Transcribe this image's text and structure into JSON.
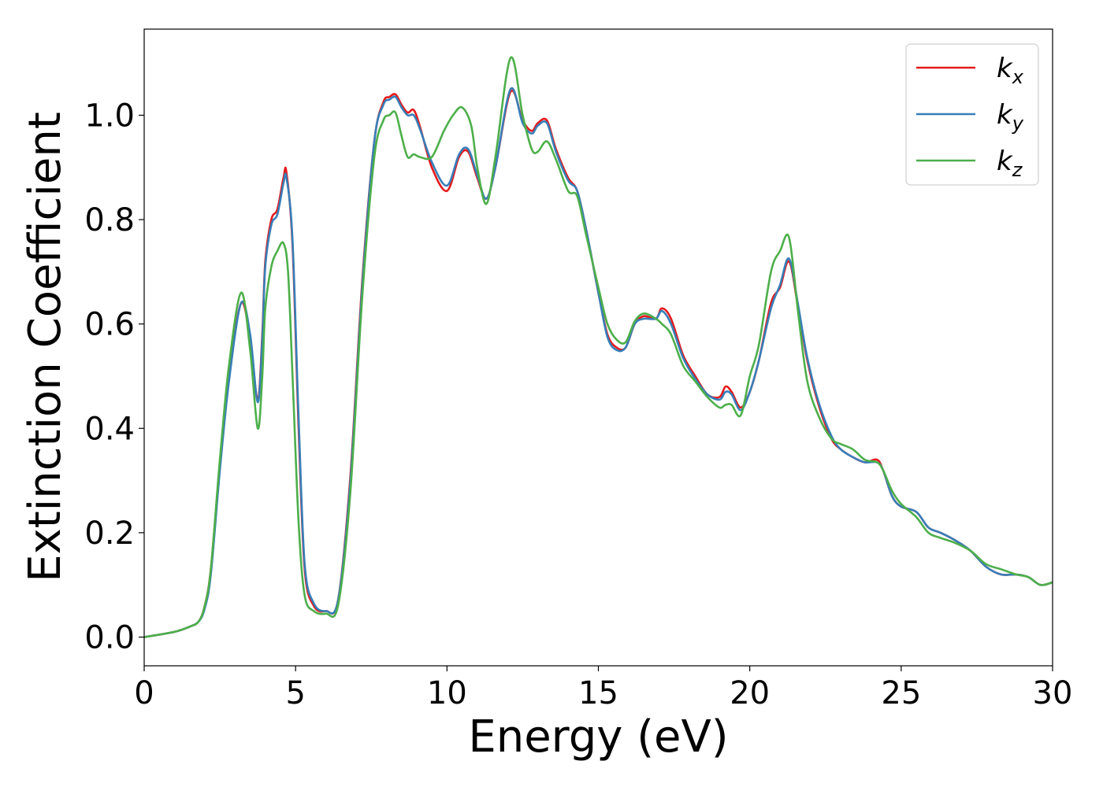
{
  "chart_data": {
    "type": "line",
    "title": "",
    "xlabel": "Energy (eV)",
    "ylabel": "Extinction Coefficient",
    "xlim": [
      0,
      30
    ],
    "ylim": [
      -0.055,
      1.165
    ],
    "xticks": [
      0,
      5,
      10,
      15,
      20,
      25,
      30
    ],
    "xtick_labels": [
      "0",
      "5",
      "10",
      "15",
      "20",
      "25",
      "30"
    ],
    "yticks": [
      0.0,
      0.2,
      0.4,
      0.6,
      0.8,
      1.0
    ],
    "ytick_labels": [
      "0.0",
      "0.2",
      "0.4",
      "0.6",
      "0.8",
      "1.0"
    ],
    "grid": false,
    "legend_position": "top-right",
    "series": [
      {
        "name": "k_x",
        "label_main": "k",
        "label_sub": "x",
        "color": "#e41a1c",
        "x": [
          0,
          1,
          1.5,
          1.8,
          2.0,
          2.2,
          2.5,
          2.8,
          3.2,
          3.5,
          3.75,
          3.9,
          4.0,
          4.2,
          4.4,
          4.6,
          4.7,
          4.9,
          5.1,
          5.3,
          5.6,
          6.0,
          6.4,
          6.8,
          7.2,
          7.6,
          7.9,
          8.1,
          8.3,
          8.5,
          8.7,
          8.9,
          9.1,
          9.5,
          10.0,
          10.4,
          10.7,
          11.0,
          11.3,
          11.6,
          12.1,
          12.5,
          12.8,
          13.0,
          13.3,
          13.6,
          14.0,
          14.3,
          14.6,
          15.0,
          15.3,
          15.6,
          15.9,
          16.2,
          16.5,
          16.9,
          17.1,
          17.4,
          17.8,
          18.2,
          18.6,
          19.0,
          19.2,
          19.4,
          19.7,
          20.0,
          20.3,
          20.7,
          21.0,
          21.3,
          21.6,
          21.9,
          22.3,
          22.7,
          23.0,
          23.4,
          23.8,
          24.2,
          24.4,
          24.7,
          25.0,
          25.5,
          25.9,
          26.3,
          26.8,
          27.3,
          27.8,
          28.3,
          28.8,
          29.2,
          29.6,
          30
        ],
        "y": [
          0.0,
          0.01,
          0.02,
          0.03,
          0.06,
          0.13,
          0.33,
          0.5,
          0.64,
          0.57,
          0.455,
          0.58,
          0.72,
          0.8,
          0.82,
          0.88,
          0.89,
          0.75,
          0.4,
          0.13,
          0.06,
          0.05,
          0.07,
          0.3,
          0.68,
          0.95,
          1.025,
          1.035,
          1.04,
          1.02,
          1.005,
          1.01,
          0.98,
          0.9,
          0.855,
          0.92,
          0.93,
          0.88,
          0.84,
          0.9,
          1.045,
          0.99,
          0.97,
          0.985,
          0.99,
          0.935,
          0.88,
          0.855,
          0.78,
          0.66,
          0.58,
          0.555,
          0.555,
          0.6,
          0.615,
          0.61,
          0.63,
          0.61,
          0.54,
          0.5,
          0.465,
          0.46,
          0.48,
          0.47,
          0.44,
          0.47,
          0.53,
          0.64,
          0.67,
          0.72,
          0.63,
          0.53,
          0.44,
          0.38,
          0.36,
          0.345,
          0.335,
          0.34,
          0.32,
          0.27,
          0.25,
          0.24,
          0.21,
          0.2,
          0.185,
          0.165,
          0.135,
          0.12,
          0.12,
          0.115,
          0.1,
          0.105
        ]
      },
      {
        "name": "k_y",
        "label_main": "k",
        "label_sub": "y",
        "color": "#377eb8",
        "x": [
          0,
          1,
          1.5,
          1.8,
          2.0,
          2.2,
          2.5,
          2.8,
          3.2,
          3.5,
          3.75,
          3.9,
          4.0,
          4.2,
          4.4,
          4.6,
          4.7,
          4.9,
          5.1,
          5.3,
          5.6,
          6.0,
          6.4,
          6.8,
          7.2,
          7.6,
          7.9,
          8.1,
          8.3,
          8.5,
          8.7,
          8.9,
          9.1,
          9.5,
          10.0,
          10.4,
          10.7,
          11.0,
          11.3,
          11.6,
          12.1,
          12.5,
          12.8,
          13.0,
          13.3,
          13.6,
          14.0,
          14.3,
          14.6,
          15.0,
          15.3,
          15.6,
          15.9,
          16.2,
          16.5,
          16.9,
          17.1,
          17.4,
          17.8,
          18.2,
          18.6,
          19.0,
          19.2,
          19.4,
          19.7,
          20.0,
          20.3,
          20.7,
          21.0,
          21.3,
          21.6,
          21.9,
          22.3,
          22.7,
          23.0,
          23.4,
          23.8,
          24.2,
          24.4,
          24.7,
          25.0,
          25.5,
          25.9,
          26.3,
          26.8,
          27.3,
          27.8,
          28.3,
          28.8,
          29.2,
          29.6,
          30
        ],
        "y": [
          0.0,
          0.01,
          0.02,
          0.03,
          0.055,
          0.12,
          0.32,
          0.49,
          0.64,
          0.58,
          0.45,
          0.57,
          0.71,
          0.79,
          0.81,
          0.87,
          0.88,
          0.76,
          0.42,
          0.14,
          0.065,
          0.05,
          0.07,
          0.29,
          0.67,
          0.95,
          1.02,
          1.03,
          1.035,
          1.015,
          1.0,
          1.0,
          0.975,
          0.91,
          0.865,
          0.925,
          0.935,
          0.885,
          0.84,
          0.9,
          1.05,
          0.985,
          0.965,
          0.98,
          0.985,
          0.93,
          0.875,
          0.855,
          0.78,
          0.66,
          0.575,
          0.55,
          0.555,
          0.6,
          0.61,
          0.61,
          0.625,
          0.6,
          0.535,
          0.495,
          0.465,
          0.455,
          0.47,
          0.465,
          0.435,
          0.47,
          0.53,
          0.63,
          0.675,
          0.725,
          0.635,
          0.535,
          0.445,
          0.385,
          0.36,
          0.345,
          0.335,
          0.335,
          0.32,
          0.27,
          0.25,
          0.24,
          0.21,
          0.2,
          0.185,
          0.165,
          0.135,
          0.12,
          0.12,
          0.115,
          0.1,
          0.105
        ]
      },
      {
        "name": "k_z",
        "label_main": "k",
        "label_sub": "z",
        "color": "#4daf4a",
        "x": [
          0,
          1,
          1.5,
          1.8,
          2.0,
          2.2,
          2.5,
          2.8,
          3.2,
          3.5,
          3.75,
          3.9,
          4.0,
          4.2,
          4.4,
          4.6,
          4.75,
          4.9,
          5.1,
          5.3,
          5.6,
          6.0,
          6.4,
          6.8,
          7.2,
          7.6,
          7.9,
          8.1,
          8.3,
          8.5,
          8.7,
          8.9,
          9.1,
          9.5,
          9.9,
          10.2,
          10.5,
          10.8,
          11.0,
          11.3,
          11.6,
          12.1,
          12.5,
          12.8,
          13.0,
          13.3,
          13.6,
          14.0,
          14.3,
          14.6,
          15.0,
          15.3,
          15.6,
          15.9,
          16.2,
          16.5,
          16.9,
          17.1,
          17.4,
          17.8,
          18.2,
          18.6,
          19.0,
          19.2,
          19.4,
          19.7,
          20.0,
          20.3,
          20.7,
          21.0,
          21.3,
          21.6,
          21.9,
          22.3,
          22.7,
          23.0,
          23.4,
          23.8,
          24.2,
          24.4,
          24.7,
          25.0,
          25.5,
          25.9,
          26.3,
          26.8,
          27.3,
          27.8,
          28.3,
          28.8,
          29.2,
          29.6,
          30
        ],
        "y": [
          0.0,
          0.01,
          0.02,
          0.03,
          0.06,
          0.13,
          0.34,
          0.52,
          0.66,
          0.55,
          0.4,
          0.5,
          0.63,
          0.71,
          0.74,
          0.755,
          0.7,
          0.5,
          0.22,
          0.08,
          0.05,
          0.045,
          0.06,
          0.27,
          0.65,
          0.92,
          0.99,
          1.0,
          1.005,
          0.96,
          0.92,
          0.925,
          0.92,
          0.92,
          0.97,
          1.0,
          1.015,
          0.98,
          0.9,
          0.83,
          0.92,
          1.11,
          1.0,
          0.935,
          0.93,
          0.95,
          0.915,
          0.855,
          0.845,
          0.77,
          0.67,
          0.6,
          0.57,
          0.565,
          0.605,
          0.62,
          0.61,
          0.6,
          0.58,
          0.52,
          0.49,
          0.46,
          0.44,
          0.445,
          0.445,
          0.425,
          0.5,
          0.56,
          0.7,
          0.74,
          0.765,
          0.62,
          0.49,
          0.42,
          0.38,
          0.37,
          0.36,
          0.34,
          0.335,
          0.32,
          0.28,
          0.255,
          0.23,
          0.2,
          0.19,
          0.18,
          0.165,
          0.14,
          0.13,
          0.12,
          0.115,
          0.1,
          0.105
        ]
      }
    ]
  }
}
